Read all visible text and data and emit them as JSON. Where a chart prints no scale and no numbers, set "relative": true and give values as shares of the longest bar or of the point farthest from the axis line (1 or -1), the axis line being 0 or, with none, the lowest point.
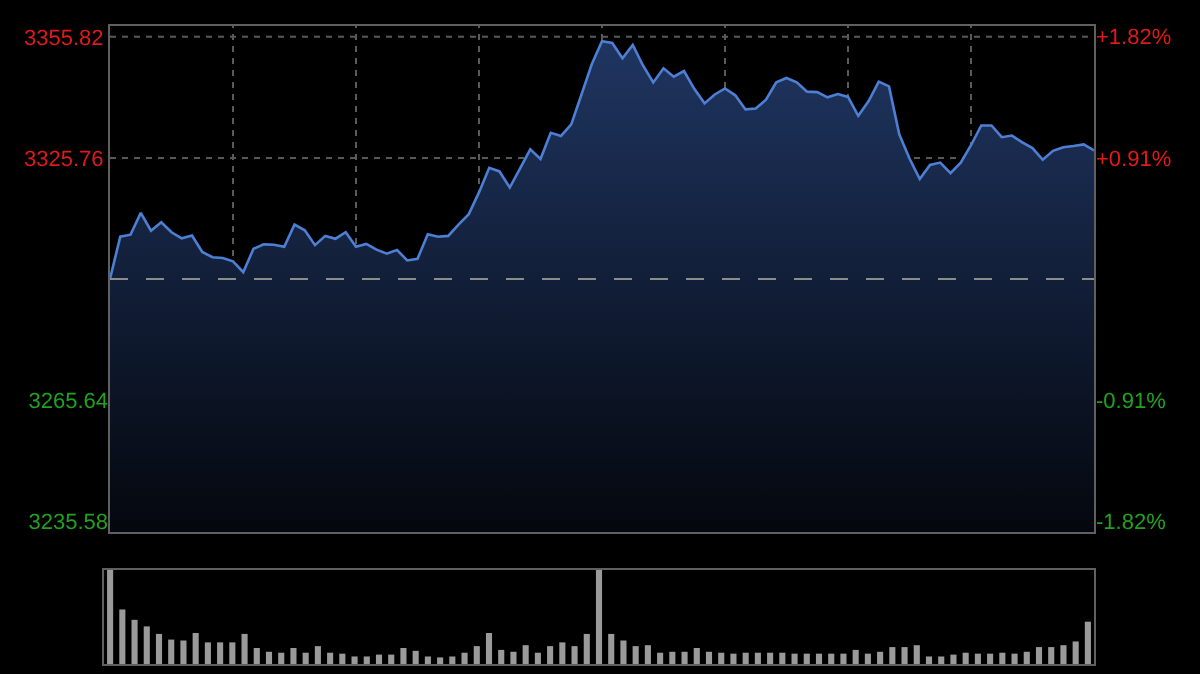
{
  "chart_data": [
    {
      "type": "area",
      "categories": [
        null,
        null,
        null,
        null,
        null,
        null,
        null,
        null,
        null,
        null,
        null,
        null,
        null,
        null,
        null,
        null,
        null,
        null,
        null,
        null,
        null,
        null,
        null,
        null,
        null,
        null,
        null,
        null,
        null,
        null,
        null,
        null,
        null,
        null,
        null,
        null,
        null,
        null,
        null,
        null,
        null,
        null,
        null,
        null,
        null,
        null,
        null,
        null,
        null,
        null,
        null,
        null,
        null,
        null,
        null,
        null,
        null,
        null,
        null,
        null,
        null,
        null,
        null,
        null,
        null,
        null,
        null,
        null,
        null,
        null,
        null,
        null,
        null,
        null,
        null,
        null,
        null,
        null,
        null,
        null,
        null,
        null,
        null,
        null,
        null,
        null,
        null,
        null,
        null,
        null,
        null,
        null,
        null,
        null,
        null,
        null,
        null
      ],
      "series": [
        {
          "color": "#4d7fd4",
          "values": [
            3295.7,
            3306.2,
            3306.7,
            3312.1,
            3307.7,
            3309.8,
            3307.3,
            3305.8,
            3306.5,
            3302.4,
            3301.1,
            3300.9,
            3300.1,
            3297.4,
            3303.2,
            3304.3,
            3304.2,
            3303.7,
            3309.2,
            3307.8,
            3304.1,
            3306.4,
            3305.7,
            3307.3,
            3303.7,
            3304.4,
            3303.0,
            3302.0,
            3302.9,
            3300.3,
            3300.7,
            3306.8,
            3306.2,
            3306.4,
            3309.2,
            3311.8,
            3317.2,
            3323.3,
            3322.4,
            3318.4,
            3323.1,
            3327.9,
            3325.5,
            3332.0,
            3331.2,
            3334.1,
            3341.5,
            3349.0,
            3354.7,
            3354.3,
            3350.5,
            3353.8,
            3348.7,
            3344.5,
            3348.0,
            3345.9,
            3347.3,
            3342.9,
            3339.3,
            3341.5,
            3343.0,
            3341.3,
            3337.8,
            3338.0,
            3340.2,
            3344.5,
            3345.6,
            3344.5,
            3342.2,
            3342.1,
            3340.8,
            3341.6,
            3340.9,
            3336.2,
            3339.8,
            3344.7,
            3343.5,
            3331.6,
            3325.6,
            3320.5,
            3324.0,
            3324.6,
            3322.0,
            3324.6,
            3328.9,
            3333.8,
            3333.8,
            3330.9,
            3331.3,
            3329.6,
            3328.2,
            3325.3,
            3327.5,
            3328.4,
            3328.7,
            3329.1,
            3327.6
          ]
        }
      ],
      "ylim": [
        3232.9,
        3358.5
      ],
      "yticks": [
        3235.58,
        3265.64,
        3325.76,
        3355.82
      ],
      "y2lim": [
        -1.9,
        1.9
      ],
      "y2ticks": [
        {
          "value": 1.82,
          "label": "+1.82%"
        },
        {
          "value": 0.91,
          "label": "+0.91%"
        },
        {
          "value": -0.91,
          "label": "-0.91%"
        },
        {
          "value": -1.82,
          "label": "-1.82%"
        }
      ],
      "ref_lines": [
        {
          "axis": "y",
          "value": 3295.7,
          "color": "#8c8c8c",
          "line_style": "dashed"
        }
      ],
      "grid": true,
      "tick_labels": "y",
      "line_style": "solid",
      "marker": "none",
      "legend": false
    },
    {
      "type": "bar",
      "relative": true,
      "tick_labels": false,
      "color": "#9a9a9a",
      "categories": [
        null,
        null,
        null,
        null,
        null,
        null,
        null,
        null,
        null,
        null,
        null,
        null,
        null,
        null,
        null,
        null,
        null,
        null,
        null,
        null,
        null,
        null,
        null,
        null,
        null,
        null,
        null,
        null,
        null,
        null,
        null,
        null,
        null,
        null,
        null,
        null,
        null,
        null,
        null,
        null,
        null,
        null,
        null,
        null,
        null,
        null,
        null,
        null,
        null,
        null,
        null,
        null,
        null,
        null,
        null,
        null,
        null,
        null,
        null,
        null,
        null,
        null,
        null,
        null,
        null,
        null,
        null,
        null,
        null,
        null,
        null,
        null,
        null,
        null,
        null,
        null,
        null,
        null,
        null,
        null,
        null
      ],
      "values": [
        1.0,
        0.58,
        0.47,
        0.4,
        0.32,
        0.26,
        0.25,
        0.33,
        0.23,
        0.23,
        0.23,
        0.32,
        0.17,
        0.13,
        0.12,
        0.17,
        0.12,
        0.19,
        0.12,
        0.11,
        0.08,
        0.08,
        0.1,
        0.1,
        0.17,
        0.14,
        0.08,
        0.07,
        0.08,
        0.12,
        0.19,
        0.33,
        0.15,
        0.13,
        0.2,
        0.12,
        0.19,
        0.23,
        0.19,
        0.32,
        1.0,
        0.32,
        0.25,
        0.19,
        0.2,
        0.12,
        0.13,
        0.13,
        0.17,
        0.13,
        0.12,
        0.11,
        0.12,
        0.12,
        0.12,
        0.12,
        0.11,
        0.11,
        0.11,
        0.11,
        0.11,
        0.15,
        0.11,
        0.13,
        0.18,
        0.18,
        0.2,
        0.08,
        0.08,
        0.1,
        0.12,
        0.11,
        0.11,
        0.12,
        0.11,
        0.13,
        0.18,
        0.18,
        0.2,
        0.24,
        0.45
      ],
      "legend": false
    }
  ]
}
